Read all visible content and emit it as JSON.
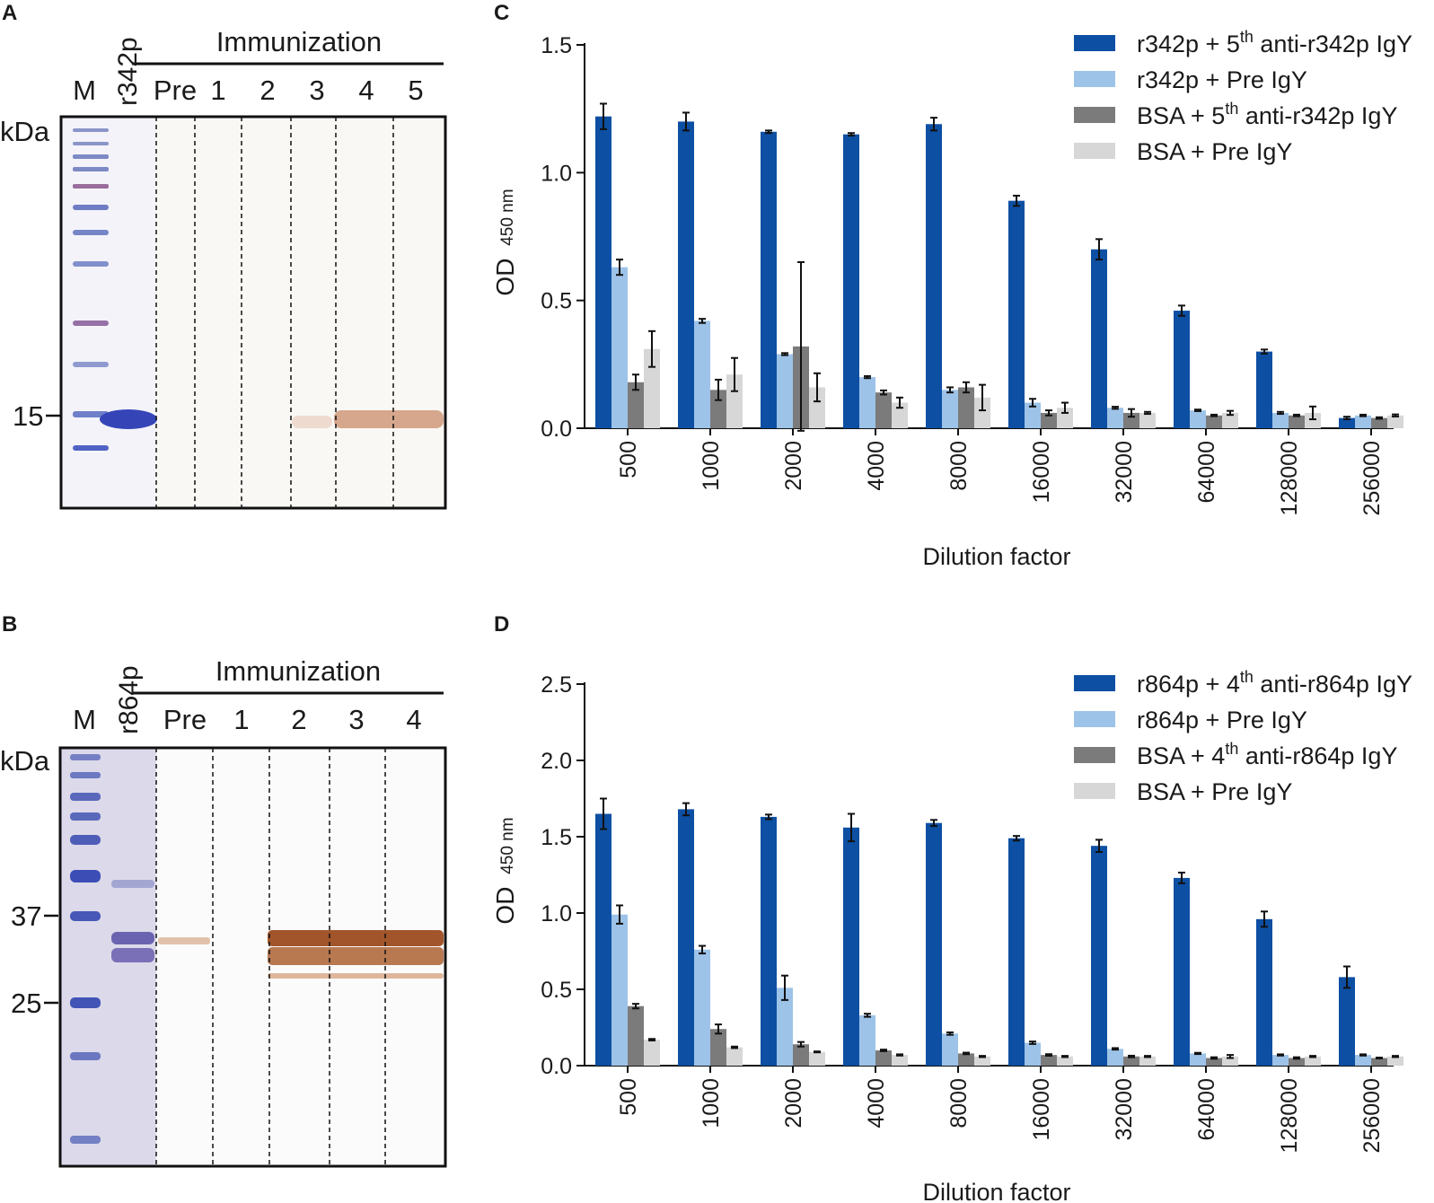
{
  "panels": {
    "A": {
      "label": "A",
      "header": "Immunization",
      "marker_label": "M",
      "antigen_label": "r342p",
      "lane_labels": [
        "Pre",
        "1",
        "2",
        "3",
        "4",
        "5"
      ],
      "unit": "kDa",
      "ticks": [
        "15"
      ]
    },
    "B": {
      "label": "B",
      "header": "Immunization",
      "marker_label": "M",
      "antigen_label": "r864p",
      "lane_labels": [
        "Pre",
        "1",
        "2",
        "3",
        "4"
      ],
      "unit": "kDa",
      "ticks": [
        "37",
        "25"
      ]
    },
    "C": {
      "label": "C"
    },
    "D": {
      "label": "D"
    }
  },
  "colors": {
    "series1": "#0d4fa3",
    "series2": "#9dc3e8",
    "series3": "#7b7b7b",
    "series4": "#d7d7d7",
    "gel_frame": "#111111",
    "marker_blue": "#4a5ec0",
    "coomassie_band": "#3440b0",
    "western_band": "#a2552a"
  },
  "chart_data": [
    {
      "type": "bar",
      "panel": "C",
      "title": "",
      "xlabel": "Dilution factor",
      "ylabel_main": "OD",
      "ylabel_sub": "450 nm",
      "ylim": [
        0,
        1.5
      ],
      "yticks": [
        "0.0",
        "0.5",
        "1.0",
        "1.5"
      ],
      "categories": [
        "500",
        "1000",
        "2000",
        "4000",
        "8000",
        "16000",
        "32000",
        "64000",
        "128000",
        "256000"
      ],
      "legend_position": "top-right",
      "series": [
        {
          "name": "r342p + 5th anti-r342p IgY",
          "legend_pre": "r342p + 5",
          "legend_sup": "th",
          "legend_post": " anti-r342p IgY",
          "values": [
            1.22,
            1.2,
            1.16,
            1.15,
            1.19,
            0.89,
            0.7,
            0.46,
            0.3,
            0.04
          ],
          "errors": [
            0.05,
            0.035,
            0.005,
            0.005,
            0.025,
            0.02,
            0.04,
            0.02,
            0.008,
            0.005
          ]
        },
        {
          "name": "r342p + Pre IgY",
          "legend_pre": "r342p + Pre IgY",
          "legend_sup": "",
          "legend_post": "",
          "values": [
            0.63,
            0.42,
            0.29,
            0.2,
            0.15,
            0.1,
            0.08,
            0.07,
            0.06,
            0.05
          ],
          "errors": [
            0.03,
            0.008,
            0.004,
            0.004,
            0.01,
            0.015,
            0.004,
            0.003,
            0.004,
            0.003
          ]
        },
        {
          "name": "BSA + 5th anti-r342p IgY",
          "legend_pre": "BSA + 5",
          "legend_sup": "th",
          "legend_post": " anti-r342p IgY",
          "values": [
            0.18,
            0.15,
            0.32,
            0.14,
            0.16,
            0.06,
            0.06,
            0.05,
            0.05,
            0.04
          ],
          "errors": [
            0.03,
            0.04,
            0.33,
            0.008,
            0.02,
            0.01,
            0.015,
            0.003,
            0.003,
            0.003
          ]
        },
        {
          "name": "BSA + Pre IgY",
          "legend_pre": "BSA + Pre IgY",
          "legend_sup": "",
          "legend_post": "",
          "values": [
            0.31,
            0.21,
            0.16,
            0.1,
            0.12,
            0.08,
            0.06,
            0.06,
            0.06,
            0.05
          ],
          "errors": [
            0.07,
            0.065,
            0.055,
            0.02,
            0.05,
            0.02,
            0.004,
            0.008,
            0.025,
            0.004
          ]
        }
      ]
    },
    {
      "type": "bar",
      "panel": "D",
      "title": "",
      "xlabel": "Dilution factor",
      "ylabel_main": "OD",
      "ylabel_sub": "450 nm",
      "ylim": [
        0,
        2.5
      ],
      "yticks": [
        "0.0",
        "0.5",
        "1.0",
        "1.5",
        "2.0",
        "2.5"
      ],
      "categories": [
        "500",
        "1000",
        "2000",
        "4000",
        "8000",
        "16000",
        "32000",
        "64000",
        "128000",
        "256000"
      ],
      "legend_position": "top-right",
      "series": [
        {
          "name": "r864p + 4th anti-r864p IgY",
          "legend_pre": "r864p + 4",
          "legend_sup": "th",
          "legend_post": " anti-r864p IgY",
          "values": [
            1.65,
            1.68,
            1.63,
            1.56,
            1.59,
            1.49,
            1.44,
            1.23,
            0.96,
            0.58
          ],
          "errors": [
            0.1,
            0.04,
            0.015,
            0.09,
            0.02,
            0.015,
            0.04,
            0.035,
            0.05,
            0.07
          ]
        },
        {
          "name": "r864p + Pre IgY",
          "legend_pre": "r864p + Pre IgY",
          "legend_sup": "",
          "legend_post": "",
          "values": [
            0.99,
            0.76,
            0.51,
            0.33,
            0.21,
            0.15,
            0.11,
            0.08,
            0.07,
            0.07
          ],
          "errors": [
            0.06,
            0.025,
            0.08,
            0.01,
            0.008,
            0.008,
            0.005,
            0.004,
            0.004,
            0.004
          ]
        },
        {
          "name": "BSA + 4th anti-r864p IgY",
          "legend_pre": "BSA + 4",
          "legend_sup": "th",
          "legend_post": " anti-r864p IgY",
          "values": [
            0.39,
            0.24,
            0.14,
            0.1,
            0.08,
            0.07,
            0.06,
            0.05,
            0.05,
            0.05
          ],
          "errors": [
            0.015,
            0.03,
            0.015,
            0.005,
            0.005,
            0.005,
            0.005,
            0.005,
            0.005,
            0.003
          ]
        },
        {
          "name": "BSA + Pre IgY",
          "legend_pre": "BSA + Pre IgY",
          "legend_sup": "",
          "legend_post": "",
          "values": [
            0.17,
            0.12,
            0.09,
            0.07,
            0.06,
            0.06,
            0.06,
            0.06,
            0.06,
            0.06
          ],
          "errors": [
            0.005,
            0.005,
            0.003,
            0.004,
            0.004,
            0.004,
            0.004,
            0.01,
            0.004,
            0.004
          ]
        }
      ]
    }
  ]
}
